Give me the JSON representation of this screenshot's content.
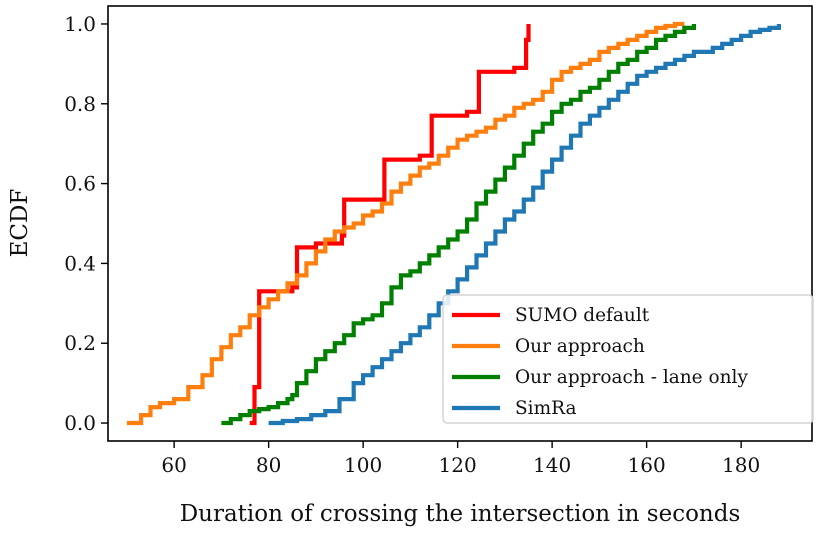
{
  "chart_data": {
    "type": "line",
    "title": "",
    "xlabel": "Duration of crossing the intersection in seconds",
    "ylabel": "ECDF",
    "xlim": [
      46,
      195
    ],
    "ylim": [
      -0.045,
      1.045
    ],
    "xticks": [
      60,
      80,
      100,
      120,
      140,
      160,
      180
    ],
    "yticks": [
      0.0,
      0.2,
      0.4,
      0.6,
      0.8,
      1.0
    ],
    "xtick_labels": [
      "60",
      "80",
      "100",
      "120",
      "140",
      "160",
      "180"
    ],
    "ytick_labels": [
      "0.0",
      "0.2",
      "0.4",
      "0.6",
      "0.8",
      "1.0"
    ],
    "grid": false,
    "legend_position": "lower-right",
    "series": [
      {
        "name": "SUMO default",
        "color": "#ff0000",
        "x": [
          76.0,
          77.0,
          77.0,
          78.0,
          78.0,
          85.0,
          86.0,
          86.0,
          90.0,
          95.0,
          95.5,
          96.0,
          96.0,
          103.5,
          104.5,
          104.5,
          112.0,
          114.0,
          114.5,
          114.5,
          122.0,
          124.0,
          124.5,
          124.5,
          132.0,
          134.0,
          134.5,
          134.5,
          135.0,
          135.0
        ],
        "y": [
          0.0,
          0.005,
          0.09,
          0.1,
          0.33,
          0.34,
          0.35,
          0.44,
          0.45,
          0.45,
          0.47,
          0.53,
          0.56,
          0.56,
          0.58,
          0.66,
          0.67,
          0.67,
          0.7,
          0.77,
          0.78,
          0.78,
          0.81,
          0.88,
          0.89,
          0.89,
          0.94,
          0.96,
          0.97,
          1.0
        ]
      },
      {
        "name": "Our approach",
        "color": "#ff7f0e",
        "x": [
          50,
          53,
          55,
          57,
          60,
          63,
          66,
          68,
          70,
          72,
          74,
          76,
          78,
          80,
          82,
          84,
          86,
          88,
          90,
          92,
          94,
          96,
          98,
          100,
          102,
          104,
          106,
          108,
          110,
          112,
          114,
          116,
          118,
          120,
          122,
          124,
          126,
          128,
          130,
          132,
          134,
          136,
          138,
          140,
          142,
          144,
          146,
          148,
          150,
          152,
          154,
          156,
          158,
          160,
          162,
          164,
          166,
          168
        ],
        "y": [
          0.0,
          0.02,
          0.04,
          0.05,
          0.06,
          0.09,
          0.12,
          0.16,
          0.19,
          0.22,
          0.24,
          0.27,
          0.29,
          0.31,
          0.33,
          0.35,
          0.37,
          0.4,
          0.43,
          0.46,
          0.48,
          0.49,
          0.5,
          0.52,
          0.53,
          0.55,
          0.58,
          0.6,
          0.62,
          0.64,
          0.65,
          0.67,
          0.69,
          0.71,
          0.72,
          0.73,
          0.74,
          0.76,
          0.77,
          0.79,
          0.8,
          0.81,
          0.83,
          0.86,
          0.88,
          0.89,
          0.9,
          0.91,
          0.93,
          0.94,
          0.95,
          0.96,
          0.97,
          0.98,
          0.99,
          0.995,
          1.0,
          1.0
        ]
      },
      {
        "name": "Our approach - lane only",
        "color": "#008000",
        "x": [
          70,
          72,
          74,
          76,
          78,
          80,
          82,
          84,
          85,
          86,
          88,
          90,
          92,
          94,
          96,
          98,
          100,
          102,
          104,
          106,
          108,
          110,
          112,
          114,
          116,
          118,
          120,
          122,
          124,
          126,
          128,
          130,
          132,
          134,
          136,
          138,
          140,
          142,
          144,
          146,
          148,
          150,
          152,
          154,
          156,
          158,
          160,
          162,
          164,
          166,
          168,
          170
        ],
        "y": [
          0.0,
          0.01,
          0.02,
          0.03,
          0.035,
          0.04,
          0.05,
          0.06,
          0.07,
          0.1,
          0.13,
          0.16,
          0.18,
          0.2,
          0.22,
          0.25,
          0.26,
          0.27,
          0.3,
          0.34,
          0.37,
          0.38,
          0.4,
          0.42,
          0.44,
          0.46,
          0.48,
          0.51,
          0.55,
          0.58,
          0.61,
          0.64,
          0.67,
          0.7,
          0.73,
          0.75,
          0.78,
          0.8,
          0.81,
          0.83,
          0.84,
          0.86,
          0.88,
          0.9,
          0.91,
          0.93,
          0.94,
          0.96,
          0.97,
          0.98,
          0.99,
          1.0
        ]
      },
      {
        "name": "SimRa",
        "color": "#1f77b4",
        "x": [
          80,
          83,
          86,
          89,
          92,
          95,
          98,
          100,
          102,
          104,
          106,
          108,
          110,
          112,
          114,
          116,
          118,
          120,
          122,
          124,
          126,
          128,
          130,
          132,
          134,
          136,
          138,
          140,
          142,
          144,
          146,
          148,
          150,
          152,
          154,
          156,
          158,
          160,
          162,
          164,
          166,
          168,
          170,
          172,
          174,
          176,
          178,
          180,
          182,
          184,
          186,
          188
        ],
        "y": [
          0.0,
          0.005,
          0.01,
          0.02,
          0.03,
          0.06,
          0.1,
          0.12,
          0.14,
          0.16,
          0.18,
          0.2,
          0.22,
          0.24,
          0.27,
          0.3,
          0.33,
          0.36,
          0.39,
          0.42,
          0.45,
          0.48,
          0.51,
          0.53,
          0.56,
          0.59,
          0.63,
          0.66,
          0.69,
          0.72,
          0.75,
          0.77,
          0.79,
          0.81,
          0.83,
          0.85,
          0.87,
          0.88,
          0.89,
          0.9,
          0.91,
          0.92,
          0.93,
          0.93,
          0.94,
          0.95,
          0.96,
          0.97,
          0.98,
          0.985,
          0.99,
          1.0
        ]
      }
    ]
  }
}
